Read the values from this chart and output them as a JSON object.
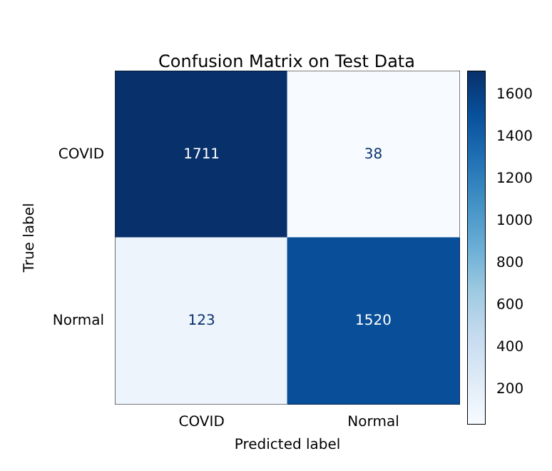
{
  "chart_data": {
    "type": "heatmap",
    "title": "Confusion Matrix on Test Data",
    "xlabel": "Predicted label",
    "ylabel": "True label",
    "categories": [
      "COVID",
      "Normal"
    ],
    "y_categories": [
      "COVID",
      "Normal"
    ],
    "cells": [
      [
        1711,
        38
      ],
      [
        123,
        1520
      ]
    ],
    "data_labels": true,
    "clim": [
      38,
      1711
    ],
    "cticks": [
      200,
      400,
      600,
      800,
      1000,
      1200,
      1400,
      1600
    ]
  }
}
